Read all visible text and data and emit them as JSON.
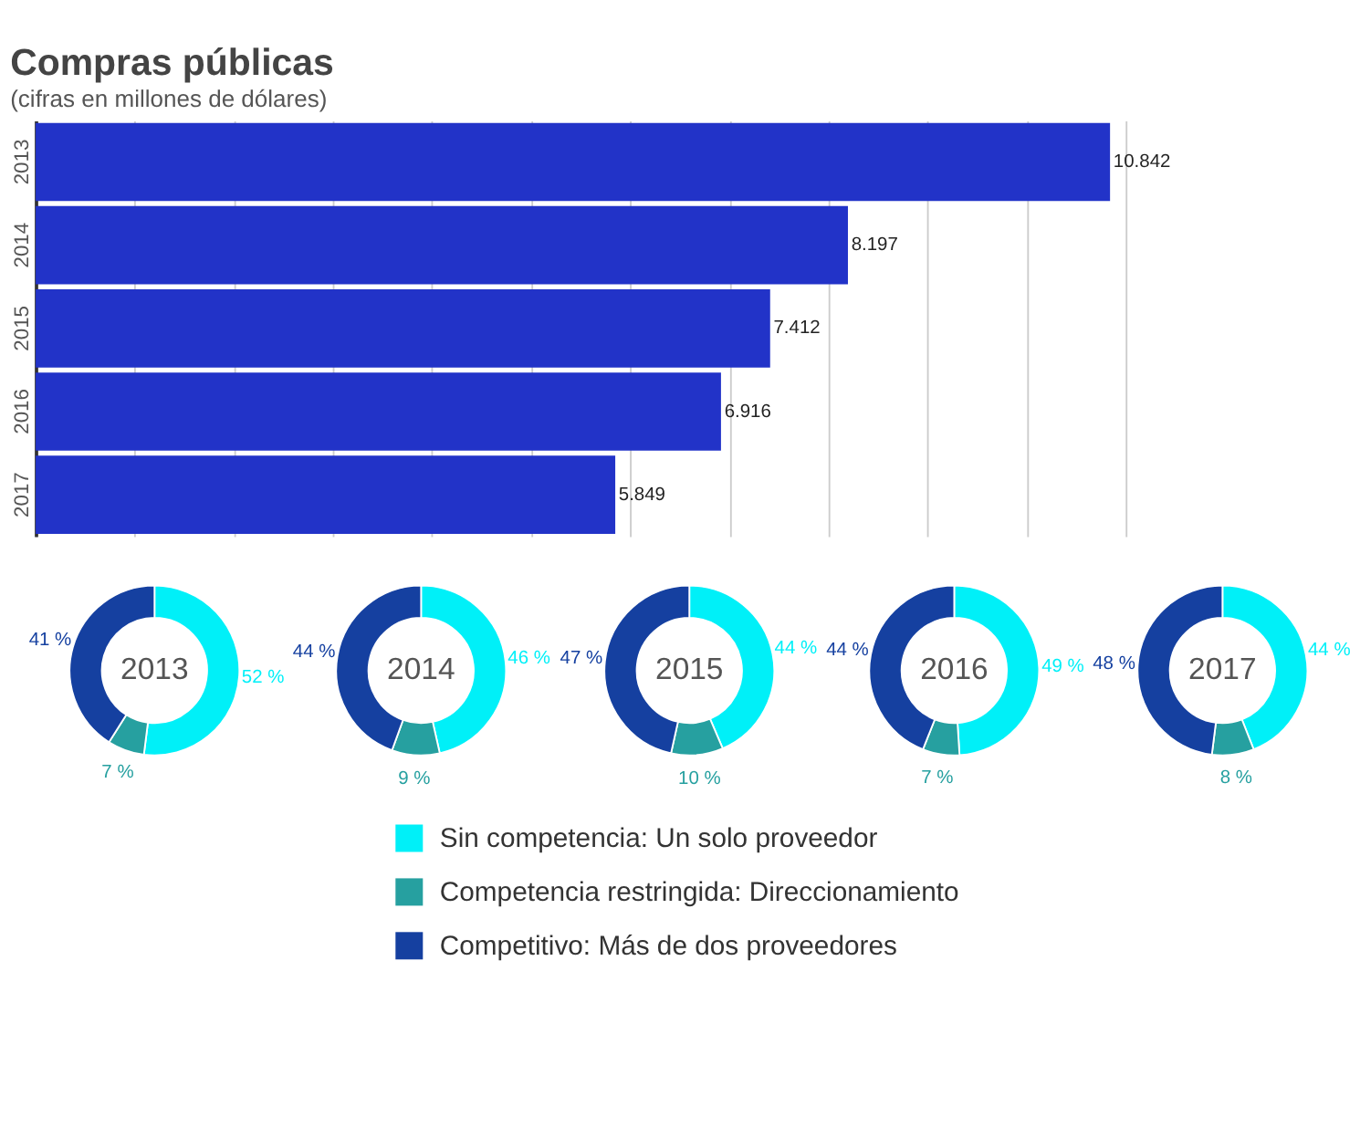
{
  "chart_data": [
    {
      "type": "bar",
      "orientation": "horizontal",
      "title": "Compras públicas",
      "subtitle": "(cifras en millones de dólares)",
      "categories": [
        "2013",
        "2014",
        "2015",
        "2016",
        "2017"
      ],
      "values": [
        10842,
        8197,
        7412,
        6916,
        5849
      ],
      "value_labels": [
        "10.842",
        "8.197",
        "7.412",
        "6.916",
        "5.849"
      ],
      "color": "#2233c8",
      "xlim": [
        0,
        11000
      ],
      "xticks": [
        {
          "value": 0,
          "label": null
        },
        {
          "value": 1000,
          "label": null
        },
        {
          "value": 2000,
          "label": null
        },
        {
          "value": 3000,
          "label": null
        },
        {
          "value": 4000,
          "label": null
        },
        {
          "value": 5000,
          "label": null
        },
        {
          "value": 6000,
          "label": null
        },
        {
          "value": 7000,
          "label": null
        },
        {
          "value": 8000,
          "label": null
        },
        {
          "value": 9000,
          "label": null
        },
        {
          "value": 10000,
          "label": null
        },
        {
          "value": 11000,
          "label": null
        }
      ],
      "grid": "x",
      "tick_labels": "y"
    },
    {
      "type": "donut",
      "title": "2013",
      "categories": [
        "Sin competencia: Un solo proveedor",
        "Competencia restringida:  Direccionamiento",
        "Competitivo: Más de dos proveedores"
      ],
      "values": [
        52,
        7,
        41
      ],
      "value_labels": [
        "52 %",
        "7 %",
        "41 %"
      ],
      "colors": [
        "#00f0f8",
        "#26a0a0",
        "#1540a0"
      ],
      "legend": "bottom"
    },
    {
      "type": "donut",
      "title": "2014",
      "values": [
        46,
        9,
        44
      ],
      "value_labels": [
        "46 %",
        "9 %",
        "44 %"
      ],
      "colors": [
        "#00f0f8",
        "#26a0a0",
        "#1540a0"
      ]
    },
    {
      "type": "donut",
      "title": "2015",
      "values": [
        44,
        10,
        47
      ],
      "value_labels": [
        "44 %",
        "10 %",
        "47 %"
      ],
      "colors": [
        "#00f0f8",
        "#26a0a0",
        "#1540a0"
      ]
    },
    {
      "type": "donut",
      "title": "2016",
      "values": [
        49,
        7,
        44
      ],
      "value_labels": [
        "49 %",
        "7 %",
        "44 %"
      ],
      "colors": [
        "#00f0f8",
        "#26a0a0",
        "#1540a0"
      ]
    },
    {
      "type": "donut",
      "title": "2017",
      "values": [
        44,
        8,
        48
      ],
      "value_labels": [
        "44 %",
        "8 %",
        "48 %"
      ],
      "colors": [
        "#00f0f8",
        "#26a0a0",
        "#1540a0"
      ]
    }
  ]
}
